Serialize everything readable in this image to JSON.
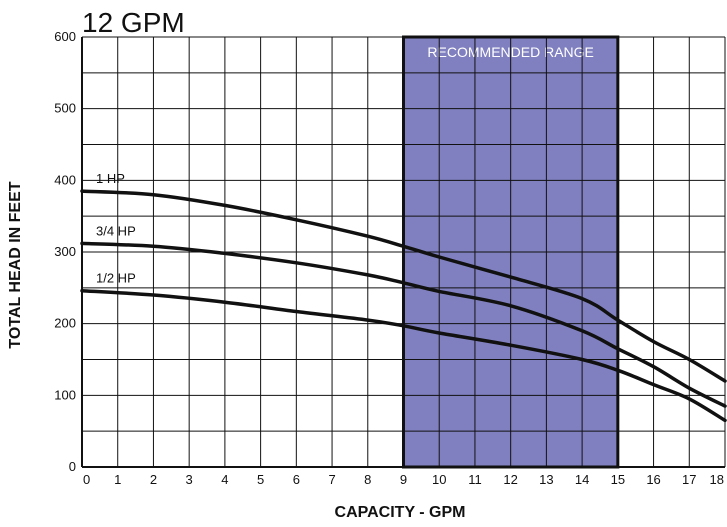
{
  "chart_data": {
    "type": "line",
    "title": "12 GPM",
    "xlabel": "CAPACITY - GPM",
    "ylabel": "TOTAL HEAD IN FEET",
    "xlim": [
      0,
      18
    ],
    "ylim": [
      0,
      600
    ],
    "x_ticks": [
      "0",
      "1",
      "2",
      "3",
      "4",
      "5",
      "6",
      "7",
      "8",
      "9",
      "10",
      "11",
      "12",
      "13",
      "14",
      "15",
      "16",
      "17",
      "18"
    ],
    "y_ticks": [
      "0",
      "100",
      "200",
      "300",
      "400",
      "500",
      "600"
    ],
    "grid": true,
    "band": {
      "label": "RECOMMENDED RANGE",
      "x_start": 9,
      "x_end": 15,
      "color": "#8080c0"
    },
    "series": [
      {
        "name": "1 HP",
        "x": [
          0,
          2,
          4,
          6,
          8,
          9,
          10,
          12,
          14,
          15,
          16,
          17,
          18
        ],
        "y": [
          385,
          380,
          365,
          345,
          322,
          308,
          293,
          265,
          235,
          205,
          175,
          150,
          120
        ]
      },
      {
        "name": "3/4 HP",
        "x": [
          0,
          2,
          4,
          6,
          8,
          9,
          10,
          12,
          14,
          15,
          16,
          17,
          18
        ],
        "y": [
          312,
          308,
          298,
          285,
          268,
          257,
          245,
          225,
          190,
          165,
          140,
          110,
          85
        ]
      },
      {
        "name": "1/2 HP",
        "x": [
          0,
          2,
          4,
          6,
          8,
          9,
          10,
          12,
          14,
          15,
          16,
          17,
          18
        ],
        "y": [
          246,
          240,
          230,
          217,
          205,
          197,
          187,
          170,
          150,
          135,
          115,
          95,
          65
        ]
      }
    ],
    "line_color": "#111111"
  }
}
